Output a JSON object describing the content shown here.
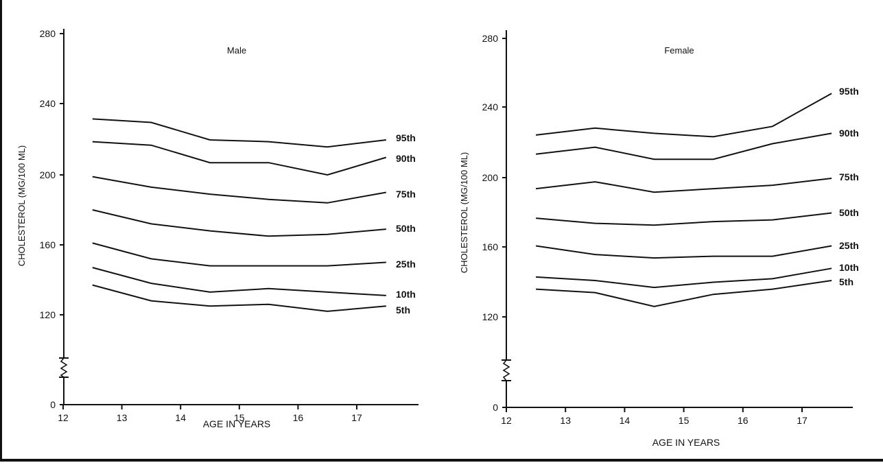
{
  "chart_data": [
    {
      "type": "line",
      "title": "Male",
      "xlabel": "AGE IN YEARS",
      "ylabel": "CHOLESTEROL (MG/100 ML)",
      "xlim": [
        12,
        18
      ],
      "x_ticks": [
        "12",
        "13",
        "14",
        "15",
        "16",
        "17"
      ],
      "y_ticks": [
        "0",
        "120",
        "160",
        "200",
        "240",
        "280"
      ],
      "y_axis_break": true,
      "x": [
        12.5,
        13.5,
        14.5,
        15.5,
        16.5,
        17.5
      ],
      "series": [
        {
          "name": "95th",
          "values": [
            232,
            230,
            220,
            219,
            216,
            220
          ]
        },
        {
          "name": "90th",
          "values": [
            219,
            217,
            207,
            207,
            200,
            210
          ]
        },
        {
          "name": "75th",
          "values": [
            199,
            193,
            189,
            186,
            184,
            190
          ]
        },
        {
          "name": "50th",
          "values": [
            180,
            172,
            168,
            165,
            166,
            169
          ]
        },
        {
          "name": "25th",
          "values": [
            161,
            152,
            148,
            148,
            148,
            150
          ]
        },
        {
          "name": "10th",
          "values": [
            147,
            138,
            133,
            135,
            133,
            131
          ]
        },
        {
          "name": "5th",
          "values": [
            137,
            128,
            125,
            126,
            122,
            125
          ]
        }
      ]
    },
    {
      "type": "line",
      "title": "Female",
      "xlabel": "AGE IN YEARS",
      "ylabel": "CHOLESTEROL (MG/100 ML)",
      "xlim": [
        12,
        18
      ],
      "x_ticks": [
        "12",
        "13",
        "14",
        "15",
        "16",
        "17"
      ],
      "y_ticks": [
        "0",
        "120",
        "160",
        "200",
        "240",
        "280"
      ],
      "y_axis_break": true,
      "x": [
        12.5,
        13.5,
        14.5,
        15.5,
        16.5,
        17.5
      ],
      "series": [
        {
          "name": "95th",
          "values": [
            225,
            229,
            226,
            224,
            230,
            249
          ]
        },
        {
          "name": "90th",
          "values": [
            214,
            218,
            211,
            211,
            220,
            226
          ]
        },
        {
          "name": "75th",
          "values": [
            194,
            198,
            192,
            194,
            196,
            200
          ]
        },
        {
          "name": "50th",
          "values": [
            177,
            174,
            173,
            175,
            176,
            180
          ]
        },
        {
          "name": "25th",
          "values": [
            161,
            156,
            154,
            155,
            155,
            161
          ]
        },
        {
          "name": "10th",
          "values": [
            143,
            141,
            137,
            140,
            142,
            148
          ]
        },
        {
          "name": "5th",
          "values": [
            136,
            134,
            126,
            133,
            136,
            141
          ]
        }
      ]
    }
  ]
}
